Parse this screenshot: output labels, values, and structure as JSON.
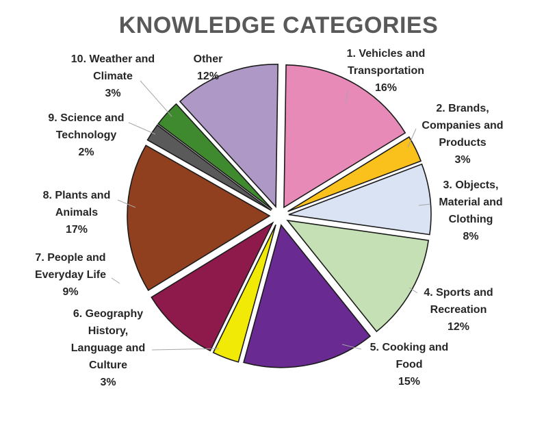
{
  "chart_data": {
    "type": "pie",
    "title": "KNOWLEDGE CATEGORIES",
    "legend": "none",
    "slices": [
      {
        "name": "1. Vehicles and Transportation",
        "label_lines": [
          "1. Vehicles and",
          "Transportation"
        ],
        "value": 16,
        "pct_label": "16%",
        "color": "#E78AB7"
      },
      {
        "name": "2. Brands, Companies and Products",
        "label_lines": [
          "2. Brands,",
          "Companies and",
          "Products"
        ],
        "value": 3,
        "pct_label": "3%",
        "color": "#FAC11C"
      },
      {
        "name": "3. Objects, Material and Clothing",
        "label_lines": [
          "3. Objects,",
          "Material and",
          "Clothing"
        ],
        "value": 8,
        "pct_label": "8%",
        "color": "#DAE3F3"
      },
      {
        "name": "4. Sports and Recreation",
        "label_lines": [
          "4. Sports and",
          "Recreation"
        ],
        "value": 12,
        "pct_label": "12%",
        "color": "#C5E0B4"
      },
      {
        "name": "5. Cooking and Food",
        "label_lines": [
          "5. Cooking and",
          "Food"
        ],
        "value": 15,
        "pct_label": "15%",
        "color": "#692B91"
      },
      {
        "name": "6. Geography History, Language and Culture",
        "label_lines": [
          "6. Geography",
          "History,",
          "Language and",
          "Culture"
        ],
        "value": 3,
        "pct_label": "3%",
        "color": "#F1EA06"
      },
      {
        "name": "7. People and Everyday Life",
        "label_lines": [
          "7. People and",
          "Everyday Life"
        ],
        "value": 9,
        "pct_label": "9%",
        "color": "#8E1A4B"
      },
      {
        "name": "8. Plants and Animals",
        "label_lines": [
          "8. Plants and",
          "Animals"
        ],
        "value": 17,
        "pct_label": "17%",
        "color": "#91401F"
      },
      {
        "name": "9. Science and Technology",
        "label_lines": [
          "9. Science and",
          "Technology"
        ],
        "value": 2,
        "pct_label": "2%",
        "color": "#5A5A5A"
      },
      {
        "name": "10. Weather and Climate",
        "label_lines": [
          "10. Weather and",
          "Climate"
        ],
        "value": 3,
        "pct_label": "3%",
        "color": "#3F8A2F"
      },
      {
        "name": "Other",
        "label_lines": [
          "Other"
        ],
        "value": 12,
        "pct_label": "12%",
        "color": "#AE98C6"
      }
    ]
  }
}
